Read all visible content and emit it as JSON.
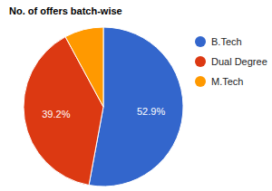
{
  "chart_data": {
    "type": "pie",
    "title": "No. of offers batch-wise",
    "categories": [
      "B.Tech",
      "Dual Degree",
      "M.Tech"
    ],
    "values": [
      52.9,
      39.2,
      7.9
    ],
    "value_labels": [
      "52.9%",
      "39.2%",
      null
    ],
    "colors": [
      "#3366cc",
      "#dc3912",
      "#ff9900"
    ],
    "data_labels": true,
    "legend": "right"
  }
}
